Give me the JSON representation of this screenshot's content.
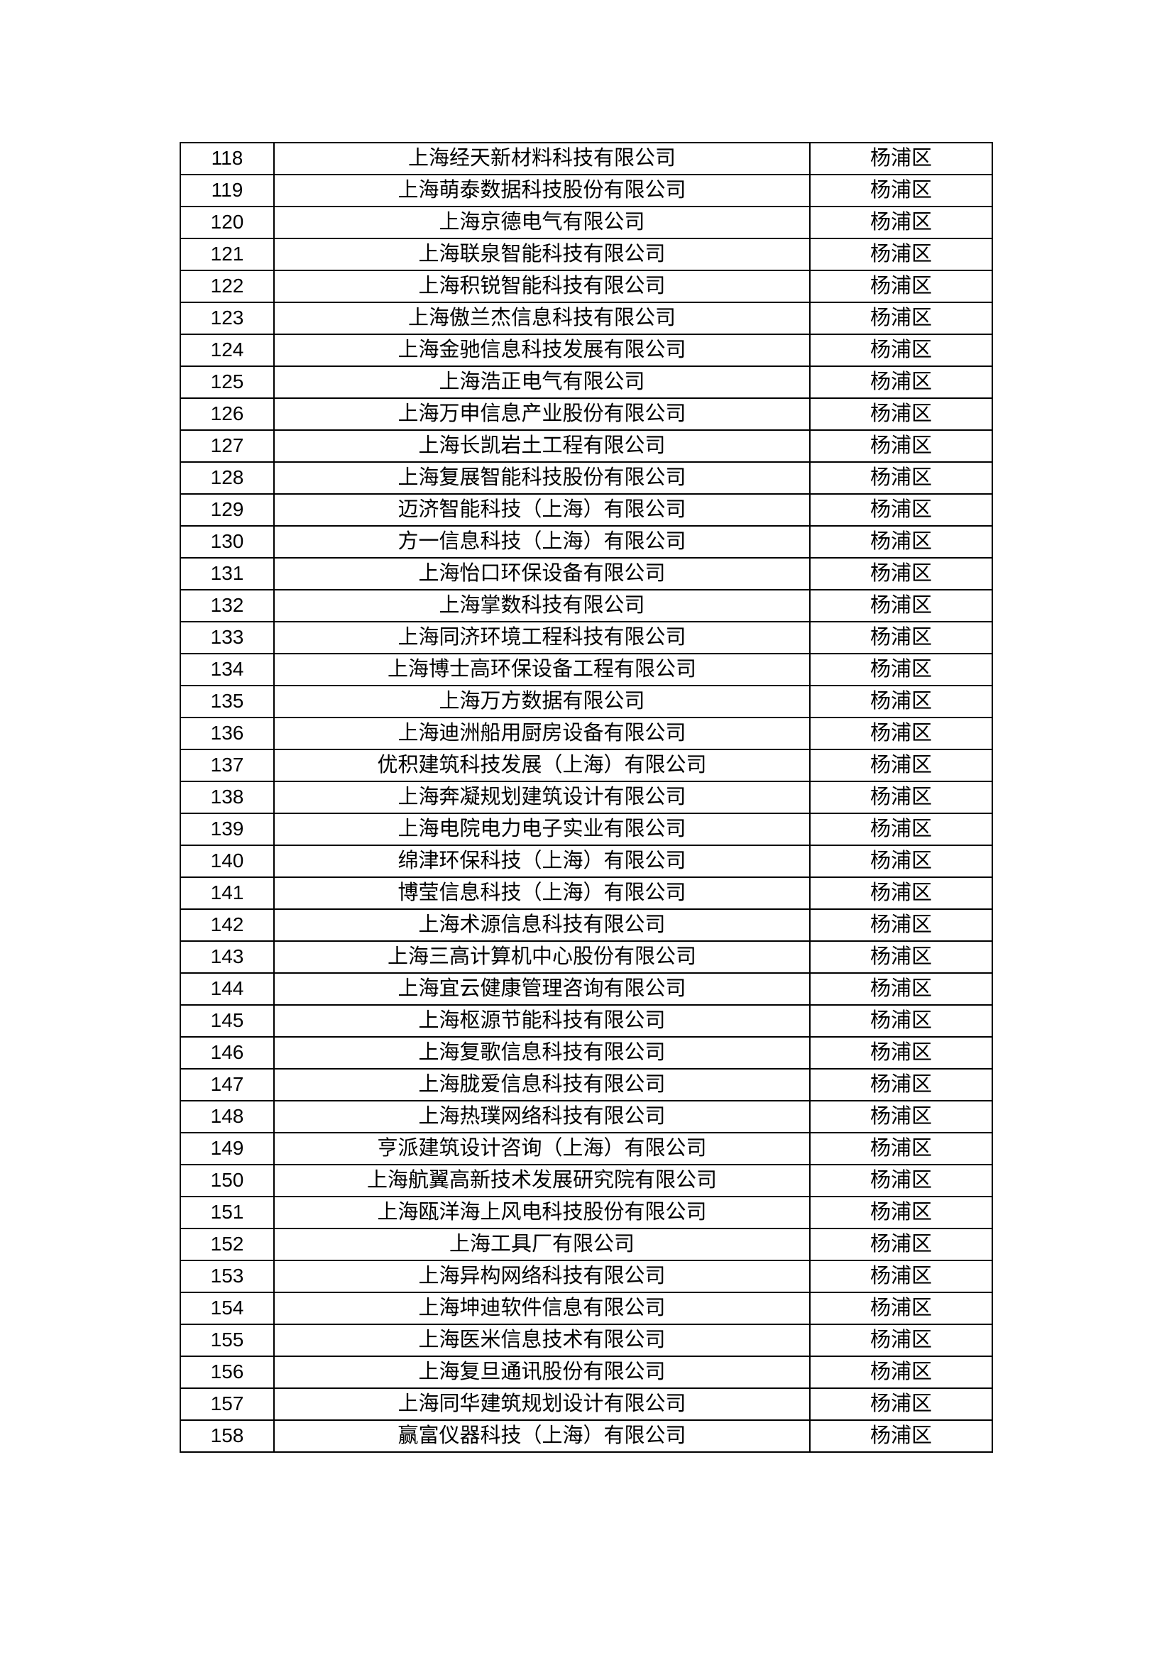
{
  "table": {
    "district_column_value": "杨浦区",
    "rows": [
      {
        "no": "118",
        "company": "上海经天新材料科技有限公司",
        "district": "杨浦区"
      },
      {
        "no": "119",
        "company": "上海萌泰数据科技股份有限公司",
        "district": "杨浦区"
      },
      {
        "no": "120",
        "company": "上海京德电气有限公司",
        "district": "杨浦区"
      },
      {
        "no": "121",
        "company": "上海联泉智能科技有限公司",
        "district": "杨浦区"
      },
      {
        "no": "122",
        "company": "上海积锐智能科技有限公司",
        "district": "杨浦区"
      },
      {
        "no": "123",
        "company": "上海傲兰杰信息科技有限公司",
        "district": "杨浦区"
      },
      {
        "no": "124",
        "company": "上海金驰信息科技发展有限公司",
        "district": "杨浦区"
      },
      {
        "no": "125",
        "company": "上海浩正电气有限公司",
        "district": "杨浦区"
      },
      {
        "no": "126",
        "company": "上海万申信息产业股份有限公司",
        "district": "杨浦区"
      },
      {
        "no": "127",
        "company": "上海长凯岩土工程有限公司",
        "district": "杨浦区"
      },
      {
        "no": "128",
        "company": "上海复展智能科技股份有限公司",
        "district": "杨浦区"
      },
      {
        "no": "129",
        "company": "迈济智能科技（上海）有限公司",
        "district": "杨浦区"
      },
      {
        "no": "130",
        "company": "方一信息科技（上海）有限公司",
        "district": "杨浦区"
      },
      {
        "no": "131",
        "company": "上海怡口环保设备有限公司",
        "district": "杨浦区"
      },
      {
        "no": "132",
        "company": "上海掌数科技有限公司",
        "district": "杨浦区"
      },
      {
        "no": "133",
        "company": "上海同济环境工程科技有限公司",
        "district": "杨浦区"
      },
      {
        "no": "134",
        "company": "上海博士高环保设备工程有限公司",
        "district": "杨浦区"
      },
      {
        "no": "135",
        "company": "上海万方数据有限公司",
        "district": "杨浦区"
      },
      {
        "no": "136",
        "company": "上海迪洲船用厨房设备有限公司",
        "district": "杨浦区"
      },
      {
        "no": "137",
        "company": "优积建筑科技发展（上海）有限公司",
        "district": "杨浦区"
      },
      {
        "no": "138",
        "company": "上海奔凝规划建筑设计有限公司",
        "district": "杨浦区"
      },
      {
        "no": "139",
        "company": "上海电院电力电子实业有限公司",
        "district": "杨浦区"
      },
      {
        "no": "140",
        "company": "绵津环保科技（上海）有限公司",
        "district": "杨浦区"
      },
      {
        "no": "141",
        "company": "博莹信息科技（上海）有限公司",
        "district": "杨浦区"
      },
      {
        "no": "142",
        "company": "上海术源信息科技有限公司",
        "district": "杨浦区"
      },
      {
        "no": "143",
        "company": "上海三高计算机中心股份有限公司",
        "district": "杨浦区"
      },
      {
        "no": "144",
        "company": "上海宜云健康管理咨询有限公司",
        "district": "杨浦区"
      },
      {
        "no": "145",
        "company": "上海枢源节能科技有限公司",
        "district": "杨浦区"
      },
      {
        "no": "146",
        "company": "上海复歌信息科技有限公司",
        "district": "杨浦区"
      },
      {
        "no": "147",
        "company": "上海胧爱信息科技有限公司",
        "district": "杨浦区"
      },
      {
        "no": "148",
        "company": "上海热璞网络科技有限公司",
        "district": "杨浦区"
      },
      {
        "no": "149",
        "company": "亨派建筑设计咨询（上海）有限公司",
        "district": "杨浦区"
      },
      {
        "no": "150",
        "company": "上海航翼高新技术发展研究院有限公司",
        "district": "杨浦区"
      },
      {
        "no": "151",
        "company": "上海瓯洋海上风电科技股份有限公司",
        "district": "杨浦区"
      },
      {
        "no": "152",
        "company": "上海工具厂有限公司",
        "district": "杨浦区"
      },
      {
        "no": "153",
        "company": "上海异构网络科技有限公司",
        "district": "杨浦区"
      },
      {
        "no": "154",
        "company": "上海坤迪软件信息有限公司",
        "district": "杨浦区"
      },
      {
        "no": "155",
        "company": "上海医米信息技术有限公司",
        "district": "杨浦区"
      },
      {
        "no": "156",
        "company": "上海复旦通讯股份有限公司",
        "district": "杨浦区"
      },
      {
        "no": "157",
        "company": "上海同华建筑规划设计有限公司",
        "district": "杨浦区"
      },
      {
        "no": "158",
        "company": "赢富仪器科技（上海）有限公司",
        "district": "杨浦区"
      }
    ]
  }
}
